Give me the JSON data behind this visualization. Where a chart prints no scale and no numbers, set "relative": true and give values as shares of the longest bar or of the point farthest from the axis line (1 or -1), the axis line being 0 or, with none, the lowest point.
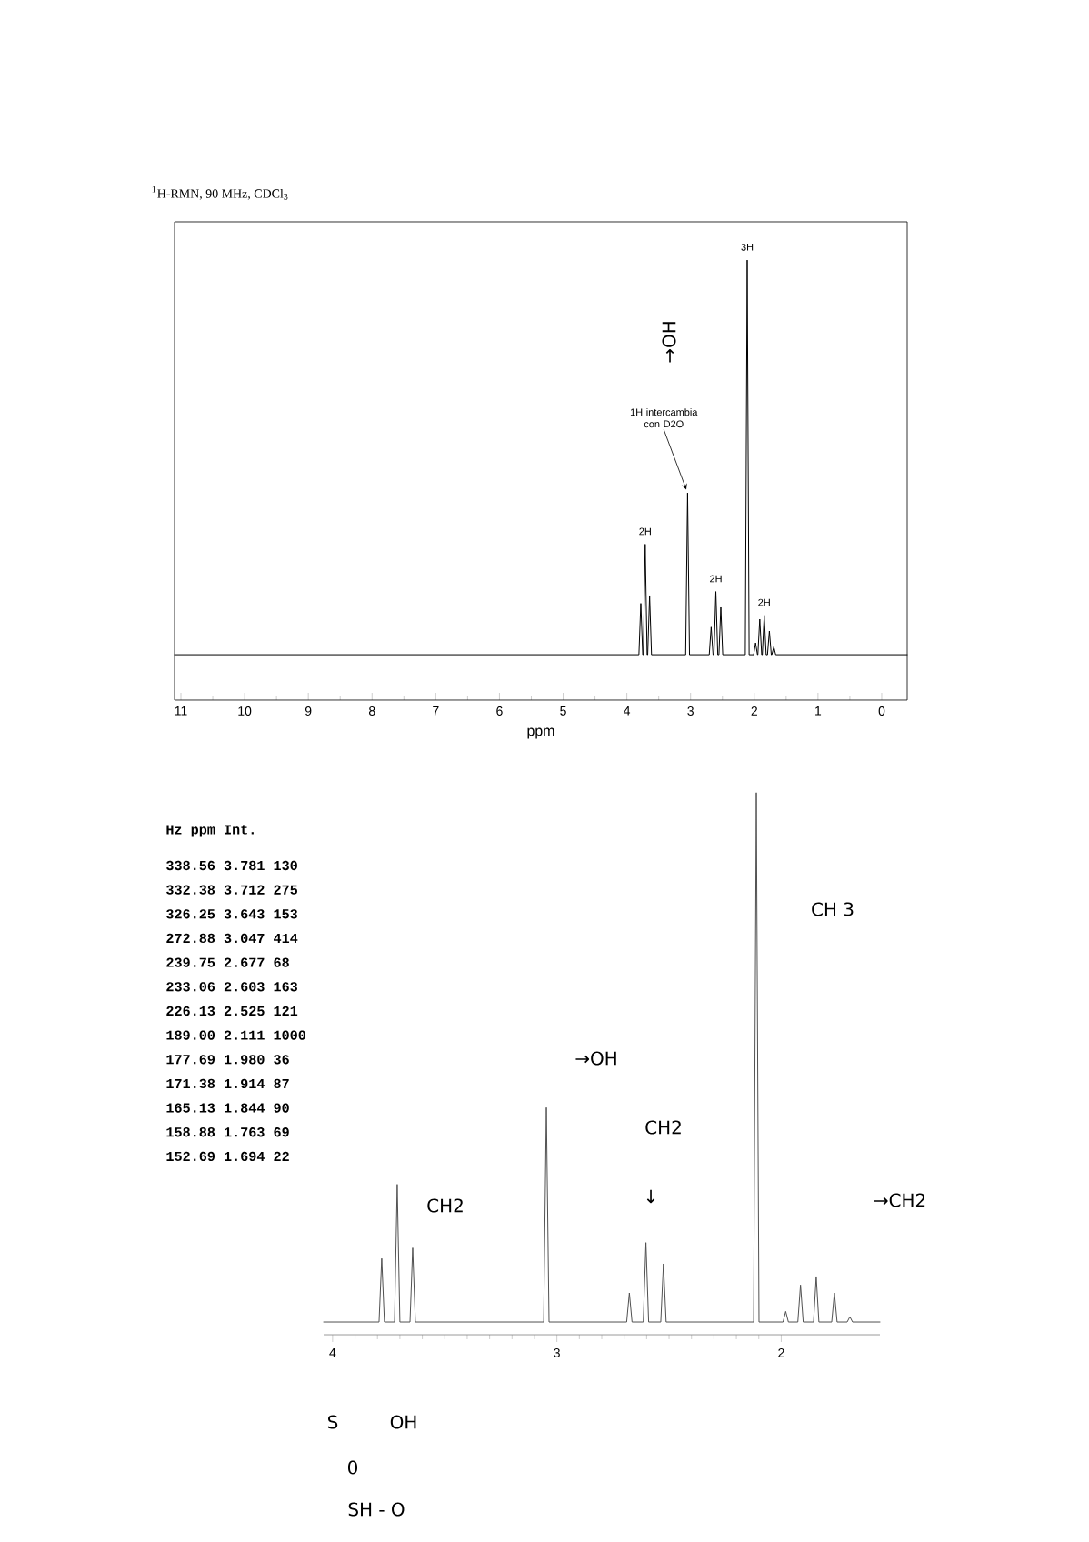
{
  "chart_data": [
    {
      "type": "line",
      "title": "$^{1}$H-RMN, 90 MHz, CDCl$_{3}$",
      "xlabel": "ppm",
      "relative": true,
      "xlim": [
        11.1,
        -0.4
      ],
      "xticks": [
        11,
        10,
        9,
        8,
        7,
        6,
        5,
        4,
        3,
        2,
        1,
        0
      ],
      "series": [
        {
          "color": "#000000",
          "x": [
            11.1,
            3.811,
            3.781,
            3.751,
            3.742,
            3.712,
            3.682,
            3.673,
            3.643,
            3.613,
            3.077,
            3.047,
            3.017,
            2.707,
            2.677,
            2.647,
            2.633,
            2.603,
            2.573,
            2.555,
            2.525,
            2.495,
            2.141,
            2.111,
            2.081,
            2.01,
            1.98,
            1.95,
            1.944,
            1.914,
            1.884,
            1.874,
            1.844,
            1.814,
            1.793,
            1.763,
            1.733,
            1.724,
            1.694,
            1.664,
            -0.4
          ],
          "values": [
            0,
            0,
            0.13,
            0,
            0,
            0.28,
            0,
            0,
            0.15,
            0,
            0,
            0.41,
            0,
            0,
            0.07,
            0,
            0,
            0.16,
            0,
            0,
            0.12,
            0,
            0,
            1,
            0,
            0,
            0.03,
            0,
            0,
            0.09,
            0,
            0,
            0.1,
            0,
            0,
            0.06,
            0,
            0,
            0.02,
            0,
            0
          ]
        }
      ],
      "annotations": [
        {
          "text": "3H",
          "x": 2.111,
          "y": 1
        },
        {
          "text": "1H intercambia con D2O",
          "x": 3.047,
          "y": 0.41
        },
        {
          "text": "2H",
          "x": 3.712,
          "y": 0.28
        },
        {
          "text": "2H",
          "x": 2.603,
          "y": 0.16
        },
        {
          "text": "2H",
          "x": 1.844,
          "y": 0.1
        },
        "→OH"
      ]
    },
    {
      "type": "line",
      "relative": true,
      "xlim": [
        4.04,
        1.56
      ],
      "xticks": [
        4,
        3,
        2
      ],
      "series": [
        {
          "color": "#505050",
          "x": [
            4.04,
            3.793,
            3.781,
            3.769,
            3.724,
            3.712,
            3.7,
            3.655,
            3.643,
            3.631,
            3.059,
            3.047,
            3.035,
            2.689,
            2.677,
            2.665,
            2.615,
            2.603,
            2.591,
            2.537,
            2.525,
            2.513,
            2.123,
            2.111,
            2.099,
            1.992,
            1.98,
            1.968,
            1.926,
            1.914,
            1.902,
            1.856,
            1.844,
            1.832,
            1.775,
            1.763,
            1.751,
            1.706,
            1.694,
            1.682,
            1.56
          ],
          "values": [
            0,
            0,
            0.12,
            0,
            0,
            0.26,
            0,
            0,
            0.14,
            0,
            0,
            0.405,
            0,
            0,
            0.055,
            0,
            0,
            0.15,
            0,
            0,
            0.11,
            0,
            0,
            1,
            0,
            0,
            0.02,
            0,
            0,
            0.07,
            0,
            0,
            0.086,
            0,
            0,
            0.055,
            0,
            0,
            0.01,
            0,
            0
          ]
        }
      ],
      "annotations": [
        "Hz ppm Int.",
        "338.56 3.781 130",
        "332.38 3.712 275",
        "326.25 3.643 153",
        "272.88 3.047 414",
        "239.75 2.677 68",
        "233.06 2.603 163",
        "226.13 2.525 121",
        "189.00 2.111 1000",
        "177.69 1.980 36",
        "171.38 1.914 87",
        "165.13 1.844 90",
        "158.88 1.763 69",
        "152.69 1.694 22",
        "CH2",
        "→OH",
        "CH2",
        "↓",
        "CH 3",
        "→CH2",
        "S",
        "OH",
        "0",
        "SH - O"
      ]
    }
  ]
}
